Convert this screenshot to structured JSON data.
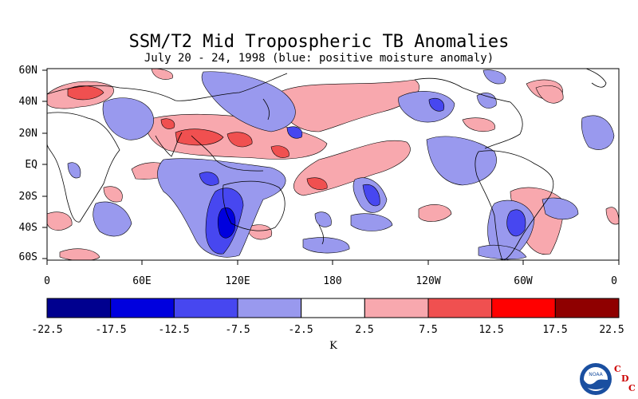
{
  "title": "SSM/T2 Mid Tropospheric TB Anomalies",
  "subtitle": "July 20 - 24, 1998 (blue: positive moisture anomaly)",
  "map": {
    "latitude_labels": [
      "60N",
      "40N",
      "20N",
      "EQ",
      "20S",
      "40S",
      "60S"
    ],
    "longitude_labels": [
      "0",
      "60E",
      "120E",
      "180",
      "120W",
      "60W",
      "0"
    ]
  },
  "colorbar": {
    "units": "K",
    "tick_labels": [
      "-22.5",
      "-17.5",
      "-12.5",
      "-7.5",
      "-2.5",
      "2.5",
      "7.5",
      "12.5",
      "17.5",
      "22.5"
    ],
    "colors": [
      "#00008f",
      "#0000de",
      "#4747f0",
      "#9999ee",
      "#ffffff",
      "#f8a8ae",
      "#f05050",
      "#ff0000",
      "#8f0000"
    ]
  },
  "logo": {
    "icon": "noaa-logo-icon",
    "logo_text": "NOAA",
    "lab_letters": [
      "C",
      "D",
      "C"
    ]
  }
}
